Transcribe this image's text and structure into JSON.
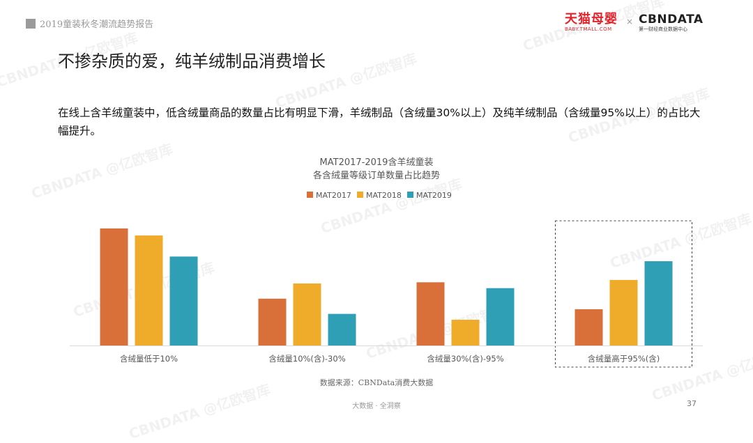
{
  "header": {
    "report_title": "2019童装秋冬潮流趋势报告",
    "tmall_logo_cn": "天猫母婴",
    "tmall_logo_url": "BABY.TMALL.COM",
    "logo_separator": "×",
    "cbn_logo_en": "CBNDATA",
    "cbn_logo_sub": "第一财经商业数据中心"
  },
  "headline": "不掺杂质的爱，纯羊绒制品消费增长",
  "description": "在线上含羊绒童装中，低含绒量商品的数量占比有明显下滑，羊绒制品（含绒量30%以上）及纯羊绒制品（含绒量95%以上）的占比大幅提升。",
  "watermark_text": "CBNDATA @亿欧智库",
  "chart_data": {
    "type": "bar",
    "title": "MAT2017-2019含羊绒童装",
    "subtitle": "各含绒量等级订单数量占比趋势",
    "categories": [
      "含绒量低于10%",
      "含绒量10%(含)-30%",
      "含绒量30%(含)-95%",
      "含绒量高于95%(含)"
    ],
    "series": [
      {
        "name": "MAT2017",
        "color": "#d9703a",
        "values": [
          100,
          40,
          54,
          31
        ]
      },
      {
        "name": "MAT2018",
        "color": "#efac2b",
        "values": [
          94,
          53,
          22,
          56
        ]
      },
      {
        "name": "MAT2019",
        "color": "#2f9fb5",
        "values": [
          76,
          27,
          49,
          72
        ]
      }
    ],
    "ylim": [
      0,
      100
    ],
    "axis_color": "#d9d9d9",
    "grid": false,
    "legend_position": "top-center",
    "highlight_category": "含绒量高于95%(含)"
  },
  "source": "数据来源：CBNData消费大数据",
  "footer": "大数据 · 全洞察",
  "page_number": "37"
}
